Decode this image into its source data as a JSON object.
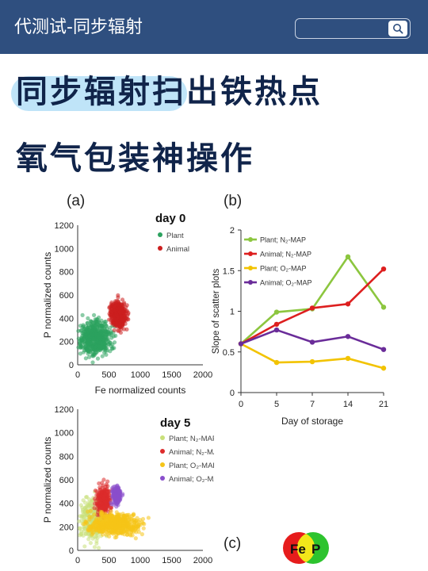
{
  "header": {
    "title": "代测试-同步辐射",
    "search_placeholder": ""
  },
  "headline": {
    "line1": "同步辐射扫出铁热点",
    "line2": "氧气包装神操作",
    "highlight": "同步辐射"
  },
  "figure_a": {
    "panel_label": "(a)",
    "title": "day 0",
    "xlabel": "Fe normalized counts",
    "ylabel": "P normalized counts",
    "xticks": [
      "0",
      "500",
      "1000",
      "1500",
      "2000"
    ],
    "yticks": [
      "0",
      "200",
      "400",
      "600",
      "800",
      "1000",
      "1200"
    ],
    "legend": [
      "Plant",
      "Animal"
    ],
    "colors": {
      "Plant": "#2ca25f",
      "Animal": "#cc1f1f"
    }
  },
  "figure_day5": {
    "title": "day 5",
    "xticks": [
      "0",
      "500",
      "1000",
      "1500",
      "2000"
    ],
    "yticks": [
      "0",
      "200",
      "400",
      "600",
      "800",
      "1000",
      "1200"
    ],
    "ylabel": "P normalized counts",
    "xlabel": "Fe normalized counts",
    "legend": [
      "Plant; N₂-MAP",
      "Animal; N₂-MAP",
      "Plant; O₂-MAP",
      "Animal; O₂-MAP"
    ],
    "colors": [
      "#c9e07a",
      "#dd2b2b",
      "#f5c518",
      "#8a4fcc"
    ]
  },
  "figure_c": {
    "panel_label": "(c)",
    "fe_label": "Fe",
    "p_label": "P"
  },
  "chart_data": [
    {
      "type": "scatter",
      "title": "day 0",
      "xlabel": "Fe normalized counts",
      "ylabel": "P normalized counts",
      "xlim": [
        0,
        2000
      ],
      "ylim": [
        0,
        1200
      ],
      "series": [
        {
          "name": "Plant",
          "center": [
            280,
            230
          ],
          "spread": [
            220,
            140
          ]
        },
        {
          "name": "Animal",
          "center": [
            650,
            430
          ],
          "spread": [
            120,
            110
          ]
        }
      ]
    },
    {
      "type": "line",
      "panel": "(b)",
      "xlabel": "Day of storage",
      "ylabel": "Slope of scatter plots",
      "categories": [
        "0",
        "5",
        "7",
        "14",
        "21"
      ],
      "ylim": [
        0,
        2
      ],
      "yticks": [
        "0",
        "0.5",
        "1",
        "1.5",
        "2"
      ],
      "legend_position": "top-left",
      "series": [
        {
          "name": "Plant; N₂-MAP",
          "color": "#8cc63f",
          "values": [
            0.6,
            0.99,
            1.03,
            1.67,
            1.05
          ]
        },
        {
          "name": "Animal; N₂-MAP",
          "color": "#dd1f1f",
          "values": [
            0.6,
            0.84,
            1.04,
            1.09,
            1.52
          ]
        },
        {
          "name": "Plant; O₂-MAP",
          "color": "#f2c300",
          "values": [
            0.6,
            0.37,
            0.38,
            0.42,
            0.3
          ]
        },
        {
          "name": "Animal; O₂-MAP",
          "color": "#6a2c99",
          "values": [
            0.6,
            0.77,
            0.62,
            0.69,
            0.53
          ]
        }
      ]
    },
    {
      "type": "scatter",
      "title": "day 5",
      "xlim": [
        0,
        2000
      ],
      "ylim": [
        0,
        1200
      ],
      "series": [
        {
          "name": "Plant; N₂-MAP",
          "center": [
            250,
            260
          ],
          "spread": [
            200,
            180
          ]
        },
        {
          "name": "Animal; N₂-MAP",
          "center": [
            420,
            430
          ],
          "spread": [
            110,
            120
          ]
        },
        {
          "name": "Plant; O₂-MAP",
          "center": [
            600,
            220
          ],
          "spread": [
            380,
            90
          ]
        },
        {
          "name": "Animal; O₂-MAP",
          "center": [
            620,
            470
          ],
          "spread": [
            70,
            70
          ]
        }
      ]
    }
  ]
}
